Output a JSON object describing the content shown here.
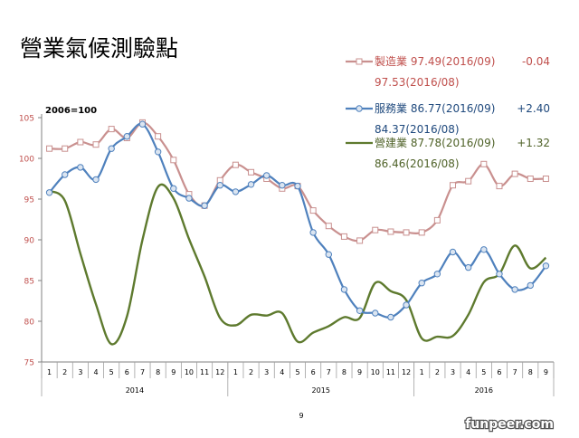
{
  "page_title": "營業氣候測驗點",
  "page_number": "9",
  "watermark": "funpeer.com",
  "chart_data": {
    "type": "line",
    "base_note": "2006=100",
    "title": "",
    "xlabel": "",
    "ylabel": "",
    "ylim": [
      75,
      105
    ],
    "yticks": [
      75,
      80,
      85,
      90,
      95,
      100,
      105
    ],
    "grid": false,
    "legend_position": "top-right",
    "categories": [
      "1",
      "2",
      "3",
      "4",
      "5",
      "6",
      "7",
      "8",
      "9",
      "10",
      "11",
      "12",
      "1",
      "2",
      "3",
      "4",
      "5",
      "6",
      "7",
      "8",
      "9",
      "10",
      "11",
      "12",
      "1",
      "2",
      "3",
      "4",
      "5",
      "6",
      "7",
      "8",
      "9"
    ],
    "years": [
      {
        "label": "2014",
        "months": 12
      },
      {
        "label": "2015",
        "months": 12
      },
      {
        "label": "2016",
        "months": 9
      }
    ],
    "series": [
      {
        "name": "製造業",
        "legend_line1": "製造業 97.49(2016/09)",
        "legend_change": "-0.04",
        "legend_line2": "97.53(2016/08)",
        "color": "#c0504d",
        "line_color": "#c9908f",
        "marker": "square",
        "values": [
          101.2,
          101.2,
          102.0,
          101.7,
          103.6,
          102.5,
          104.4,
          102.7,
          99.8,
          95.6,
          94.2,
          97.3,
          99.2,
          98.3,
          97.5,
          96.3,
          96.6,
          93.6,
          91.7,
          90.4,
          89.9,
          91.2,
          91.0,
          90.9,
          90.9,
          92.4,
          96.7,
          97.2,
          99.3,
          96.6,
          98.1,
          97.5,
          97.5
        ]
      },
      {
        "name": "服務業",
        "legend_line1": "服務業 86.77(2016/09)",
        "legend_change": "+2.40",
        "legend_line2": "84.37(2016/08)",
        "color": "#1f497d",
        "line_color": "#4f81bd",
        "marker": "circle",
        "values": [
          95.8,
          98.0,
          98.9,
          97.4,
          101.2,
          102.7,
          104.2,
          100.8,
          96.3,
          95.1,
          94.2,
          96.7,
          95.9,
          96.8,
          97.9,
          96.7,
          96.6,
          90.9,
          88.2,
          83.9,
          81.3,
          81.0,
          80.5,
          82.0,
          84.7,
          85.8,
          88.5,
          86.6,
          88.8,
          85.8,
          83.9,
          84.4,
          86.8
        ]
      },
      {
        "name": "營建業",
        "legend_line1": "營建業 87.78(2016/09)",
        "legend_change": "+1.32",
        "legend_line2": "86.46(2016/08)",
        "color": "#4f6228",
        "line_color": "#5e7a2e",
        "marker": "none",
        "values": [
          96.0,
          94.8,
          88.3,
          82.1,
          77.2,
          80.6,
          90.0,
          96.5,
          95.1,
          90.1,
          85.5,
          80.4,
          79.5,
          80.8,
          80.7,
          81.0,
          77.5,
          78.6,
          79.4,
          80.5,
          80.4,
          84.7,
          83.7,
          82.6,
          77.9,
          78.1,
          78.2,
          80.8,
          84.8,
          85.8,
          89.3,
          86.5,
          87.8
        ]
      }
    ]
  }
}
